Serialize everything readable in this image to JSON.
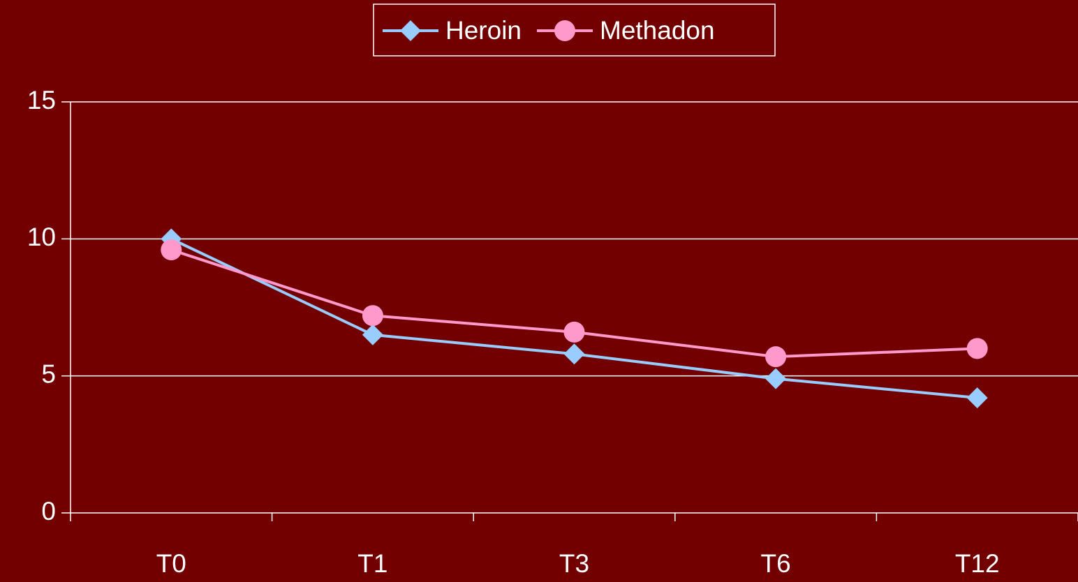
{
  "chart_data": {
    "type": "line",
    "categories": [
      "T0",
      "T1",
      "T3",
      "T6",
      "T12"
    ],
    "series": [
      {
        "name": "Heroin",
        "color": "#99ccff",
        "marker": "diamond",
        "values": [
          10,
          6.5,
          5.8,
          4.9,
          4.2
        ]
      },
      {
        "name": "Methadon",
        "color": "#ff99cc",
        "marker": "circle",
        "values": [
          9.6,
          7.2,
          6.6,
          5.7,
          6.0
        ]
      }
    ],
    "ylim": [
      0,
      15
    ],
    "yticks": [
      0,
      5,
      10,
      15
    ],
    "grid": true,
    "legend": "top"
  }
}
